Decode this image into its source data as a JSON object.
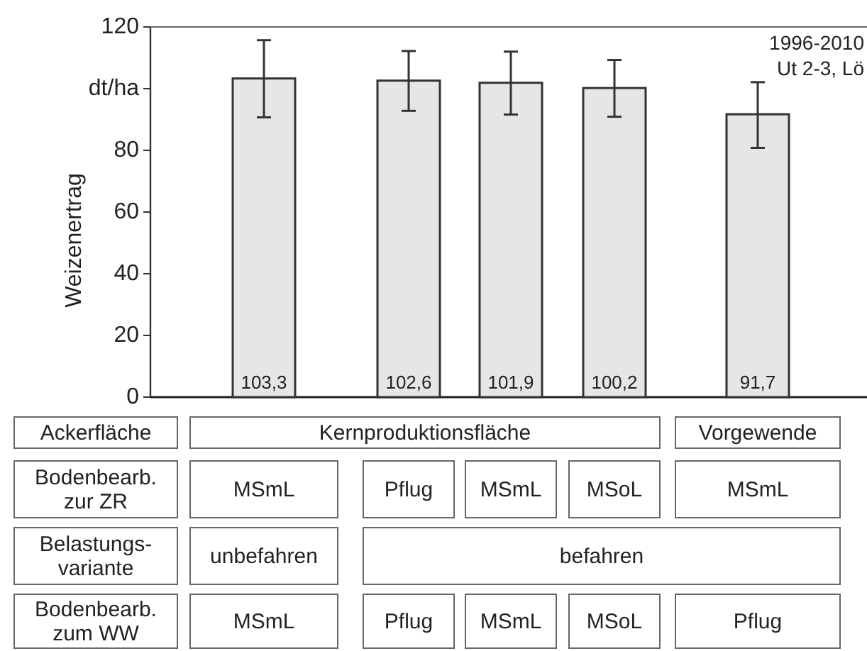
{
  "chart_data": {
    "type": "bar",
    "ylabel": "Weizenertrag",
    "categories": [
      null,
      null,
      null,
      null,
      null
    ],
    "values": [
      103.3,
      102.6,
      101.9,
      100.2,
      91.7
    ],
    "value_labels": [
      "103,3",
      "102,6",
      "101,9",
      "100,2",
      "91,7"
    ],
    "errors": [
      [
        90.7,
        115.7
      ],
      [
        92.8,
        112.2
      ],
      [
        91.6,
        112
      ],
      [
        90.9,
        109.3
      ],
      [
        80.8,
        102.1
      ]
    ],
    "color": "#e6e6e6",
    "ylim": [
      0,
      120
    ],
    "yticks": [
      0,
      20,
      40,
      60,
      80,
      {
        "value": 100,
        "label": "dt/ha"
      },
      120
    ],
    "grid": false,
    "annotations": [
      "1996-2010",
      "Ut 2-3, Lö",
      "Ackerfläche",
      "Kernproduktionsfläche",
      "Vorgewende",
      "Bodenbearb.\nzur ZR",
      "MSmL",
      "Pflug",
      "MSmL",
      "MSoL",
      "MSmL",
      "Belastungs-\nvariante",
      "unbefahren",
      "befahren",
      "Bodenbearb.\nzum WW",
      "MSmL",
      "Pflug",
      "MSmL",
      "MSoL",
      "Pflug"
    ]
  }
}
